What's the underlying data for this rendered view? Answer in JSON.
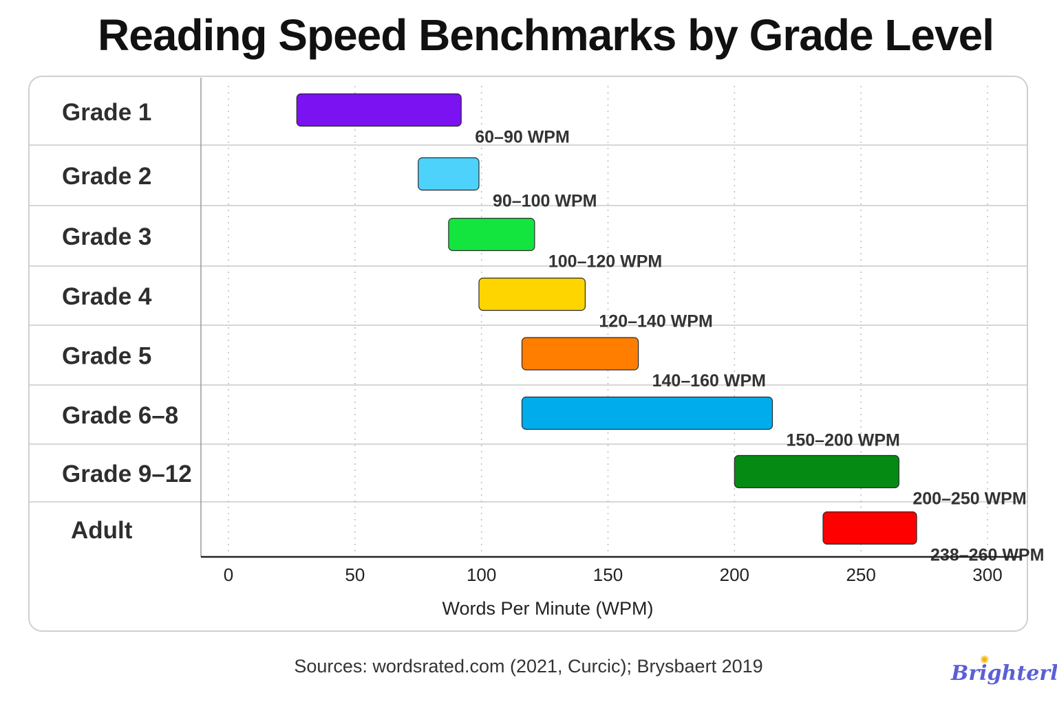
{
  "title": "Reading Speed Benchmarks by Grade Level",
  "source": "Sources: wordsrated.com (2021, Curcic); Brysbaert 2019",
  "brand": {
    "name": "Brighterly",
    "icon": "sun-icon"
  },
  "chart_data": {
    "type": "bar",
    "orientation": "horizontal-range",
    "title": "Reading Speed Benchmarks by Grade Level",
    "xlabel": "Words Per Minute (WPM)",
    "ylabel": "",
    "xlim": [
      0,
      300
    ],
    "xticks": [
      "0",
      "50",
      "100",
      "150",
      "200",
      "250",
      "300"
    ],
    "grid": "vertical dotted",
    "categories": [
      "Grade 1",
      "Grade 2",
      "Grade 3",
      "Grade 4",
      "Grade 5",
      "Grade 6–8",
      "Grade 9–12",
      "Adult"
    ],
    "ranges": [
      [
        27,
        92
      ],
      [
        75,
        99
      ],
      [
        87,
        121
      ],
      [
        99,
        141
      ],
      [
        116,
        162
      ],
      [
        116,
        215
      ],
      [
        200,
        265
      ],
      [
        235,
        272
      ]
    ],
    "labels": [
      "60–90 WPM",
      "90–100 WPM",
      "100–120 WPM",
      "120–140 WPM",
      "140–160 WPM",
      "150–200 WPM",
      "200–250 WPM",
      "238–260 WPM"
    ],
    "colors": [
      "#7a12f2",
      "#4dd2fb",
      "#13e53e",
      "#ffd500",
      "#ff7e00",
      "#00acec",
      "#058a14",
      "#ff0000"
    ]
  }
}
